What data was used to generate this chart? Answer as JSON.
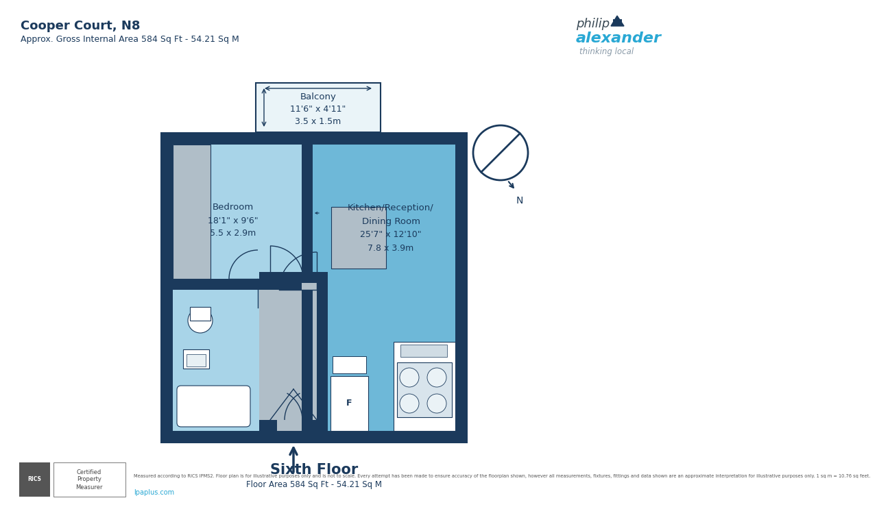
{
  "title_line1": "Cooper Court, N8",
  "title_line2": "Approx. Gross Internal Area 584 Sq Ft - 54.21 Sq M",
  "floor_label": "Sixth Floor",
  "floor_area": "Floor Area 584 Sq Ft - 54.21 Sq M",
  "bg_color": "#ffffff",
  "wall_color": "#1b3a5c",
  "bedroom_color": "#a8d4e8",
  "kitchen_color": "#6eb8d8",
  "hallway_color": "#b0bec8",
  "bathroom_color": "#a8d4e8",
  "balcony_color": "#eaf4f8",
  "title_color": "#1b3a5c",
  "text_color": "#1b3a5c",
  "logo_blue": "#29a8d4",
  "logo_grey": "#8a9aa8",
  "disclaimer": "Measured according to RICS IPMS2. Floor plan is for illustrative purposes only and is not to scale. Every attempt has been made to ensure accuracy of the floorplan shown, however all measurements, fixtures, fittings and data shown are an approximate interpretation for illustrative purposes only. 1 sq m = 10.76 sq feet."
}
